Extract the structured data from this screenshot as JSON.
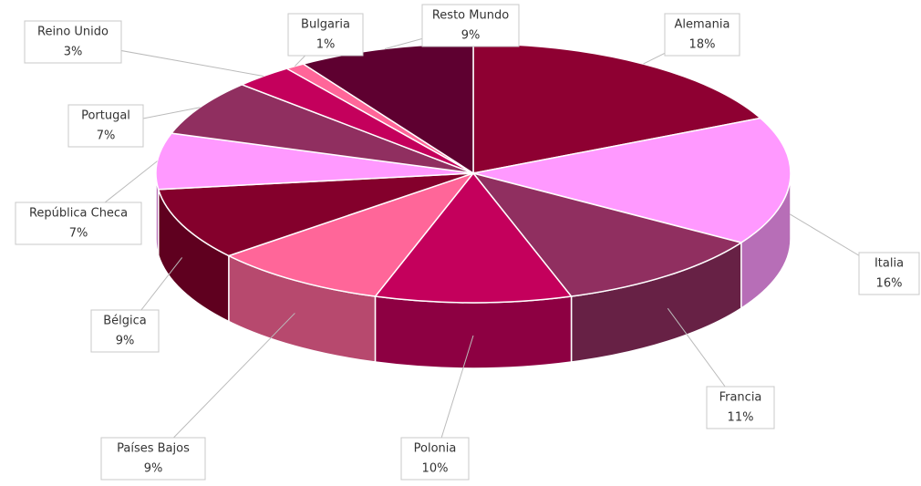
{
  "chart_data": {
    "type": "pie",
    "categories": [
      "Alemania",
      "Italia",
      "Francia",
      "Polonia",
      "Países Bajos",
      "Bélgica",
      "República Checa",
      "Portugal",
      "Reino Unido",
      "Bulgaria",
      "Resto Mundo"
    ],
    "values": [
      18,
      16,
      11,
      10,
      9,
      9,
      7,
      7,
      3,
      1,
      9
    ],
    "value_labels": [
      "18%",
      "16%",
      "11%",
      "10%",
      "9%",
      "9%",
      "7%",
      "7%",
      "3%",
      "1%",
      "9%"
    ],
    "colors": [
      "#8e0032",
      "#ff99ff",
      "#902f60",
      "#c4005c",
      "#ff6699",
      "#84002c",
      "#ff99ff",
      "#902f60",
      "#c4005c",
      "#ff6699",
      "#5e0030"
    ]
  }
}
